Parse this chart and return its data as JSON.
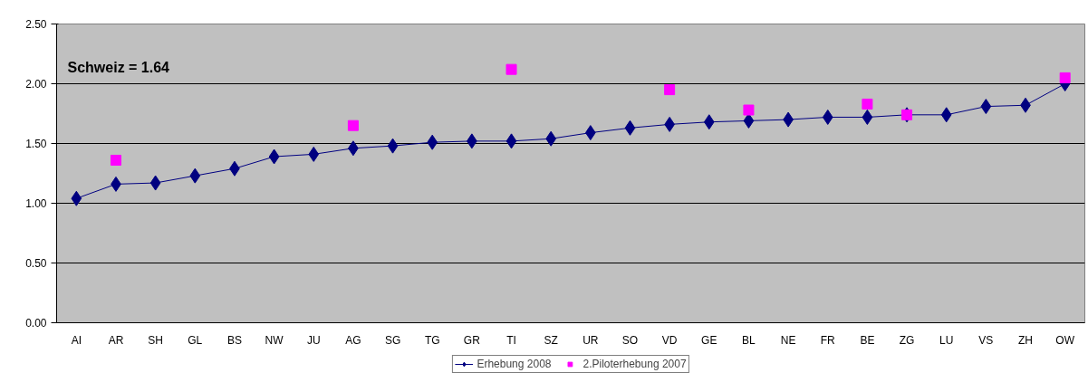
{
  "chart_data": {
    "type": "line",
    "categories": [
      "AI",
      "AR",
      "SH",
      "GL",
      "BS",
      "NW",
      "JU",
      "AG",
      "SG",
      "TG",
      "GR",
      "TI",
      "SZ",
      "UR",
      "SO",
      "VD",
      "GE",
      "BL",
      "NE",
      "FR",
      "BE",
      "ZG",
      "LU",
      "VS",
      "ZH",
      "OW"
    ],
    "series": [
      {
        "name": "Erhebung 2008",
        "color": "#000080",
        "marker": "diamond",
        "values": [
          1.04,
          1.16,
          1.17,
          1.23,
          1.29,
          1.39,
          1.41,
          1.46,
          1.48,
          1.51,
          1.52,
          1.52,
          1.54,
          1.59,
          1.63,
          1.66,
          1.68,
          1.69,
          1.7,
          1.72,
          1.72,
          1.74,
          1.74,
          1.81,
          1.82,
          2.0
        ]
      },
      {
        "name": "2.Piloterhebung 2007",
        "color": "#ff00ff",
        "type": "scatter",
        "marker": "square",
        "values": [
          null,
          1.36,
          null,
          null,
          null,
          null,
          null,
          1.65,
          null,
          null,
          null,
          2.12,
          null,
          null,
          null,
          1.95,
          null,
          1.78,
          null,
          null,
          1.83,
          1.74,
          null,
          null,
          null,
          2.05
        ]
      }
    ],
    "ylim": [
      0,
      2.5
    ],
    "yticks": [
      {
        "value": 0,
        "label": "0.00"
      },
      {
        "value": 0.5,
        "label": "0.50"
      },
      {
        "value": 1,
        "label": "1.00"
      },
      {
        "value": 1.5,
        "label": "1.50"
      },
      {
        "value": 2,
        "label": "2.00"
      },
      {
        "value": 2.5,
        "label": "2.50"
      }
    ],
    "grid": "y",
    "legend": "bottom",
    "annotations": [
      "Schweiz = 1.64"
    ]
  }
}
